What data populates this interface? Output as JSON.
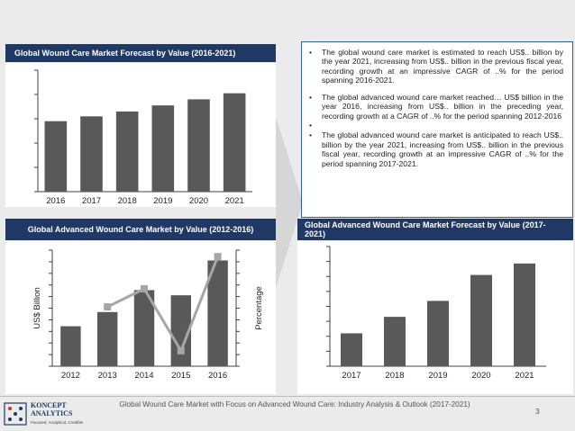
{
  "panels": {
    "top_left_title": "Global Wound Care Market Forecast by Value (2016-2021)",
    "bottom_left_title": "Global Advanced Wound Care Market by Value (2012-2016)",
    "bottom_right_title": "Global Advanced Wound Care Market Forecast by Value (2017-2021)"
  },
  "bullets": [
    "The global wound care market is estimated to reach US$.. billion by the year 2021, increasing from US$.. billion in the previous fiscal year, recording growth at an impressive CAGR of ..% for the period spanning 2016-2021.",
    "The global advanced wound care market reached… US$ billion in the year 2016, increasing from US$.. billion in the preceding year, recording growth at a CAGR of ..% for the period spanning 2012-2016",
    "",
    "The global advanced wound care market is anticipated to reach US$.. billion by the year 2021, increasing from US$.. billion in the previous fiscal year, recording growth at an impressive CAGR of ..% for the period spanning 2017-2021."
  ],
  "footer": {
    "text": "Global Wound Care Market with Focus on Advanced Wound Care: Industry Analysis & Outlook (2017-2021)",
    "page_number": "3",
    "logo_name": "KONCEPT ANALYTICS",
    "logo_tagline": "Focused, Analytical, Credible"
  },
  "colors": {
    "bar": "#595959",
    "line": "#a6a6a6",
    "title_bg": "#1f3864",
    "bullet_border": "#2f5f97"
  },
  "chart_data": [
    {
      "id": "wound_care_forecast",
      "type": "bar",
      "title": "Global Wound Care Market Forecast by Value (2016-2021)",
      "categories": [
        "2016",
        "2017",
        "2018",
        "2019",
        "2020",
        "2021"
      ],
      "values": [
        2.9,
        3.1,
        3.3,
        3.55,
        3.8,
        4.05
      ],
      "ylim": [
        0,
        5
      ],
      "yticks": 5,
      "grid": false
    },
    {
      "id": "advanced_wound_care_history",
      "type": "bar",
      "title": "Global Advanced Wound Care Market by Value (2012-2016)",
      "categories": [
        "2012",
        "2013",
        "2014",
        "2015",
        "2016"
      ],
      "values": [
        3.1,
        4.2,
        5.9,
        5.5,
        8.2
      ],
      "ylim": [
        0,
        9
      ],
      "yticks": 10,
      "ylabel": "US$ Billion",
      "y2label": "Percentage",
      "series": [
        {
          "values": [
            3.1,
            4.2,
            5.9,
            5.5,
            8.2
          ],
          "kind": "bar"
        },
        {
          "values": [
            null,
            4.6,
            6.0,
            1.2,
            8.5
          ],
          "kind": "line"
        }
      ],
      "grid": false
    },
    {
      "id": "advanced_wound_care_forecast",
      "type": "bar",
      "title": "Global Advanced Wound Care Market Forecast by Value (2017-2021)",
      "categories": [
        "2017",
        "2018",
        "2019",
        "2020",
        "2021"
      ],
      "values": [
        3.3,
        4.95,
        6.55,
        9.15,
        10.3
      ],
      "ylim": [
        0,
        12
      ],
      "yticks": 8,
      "grid": false
    }
  ]
}
